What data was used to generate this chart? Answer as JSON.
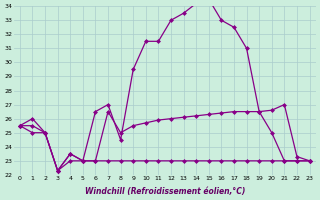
{
  "bg_color": "#cceedd",
  "grid_color": "#aacccc",
  "line_color": "#880088",
  "xlim": [
    -0.5,
    23.5
  ],
  "ylim": [
    22,
    34
  ],
  "xticks": [
    0,
    1,
    2,
    3,
    4,
    5,
    6,
    7,
    8,
    9,
    10,
    11,
    12,
    13,
    14,
    15,
    16,
    17,
    18,
    19,
    20,
    21,
    22,
    23
  ],
  "yticks": [
    22,
    23,
    24,
    25,
    26,
    27,
    28,
    29,
    30,
    31,
    32,
    33,
    34
  ],
  "line1_x": [
    0,
    1,
    2,
    3,
    4,
    5,
    6,
    7,
    8,
    9,
    10,
    11,
    12,
    13,
    14,
    15,
    16,
    17,
    18,
    19,
    20,
    21,
    22,
    23
  ],
  "line1_y": [
    25.5,
    26.0,
    25.0,
    22.3,
    23.5,
    23.0,
    23.0,
    26.5,
    25.0,
    25.5,
    25.7,
    25.9,
    26.0,
    26.1,
    26.2,
    26.3,
    26.4,
    26.5,
    26.5,
    26.5,
    26.6,
    27.0,
    23.3,
    23.0
  ],
  "line2_x": [
    0,
    1,
    2,
    3,
    4,
    5,
    6,
    7,
    8,
    9,
    10,
    11,
    12,
    13,
    14,
    15,
    16,
    17,
    18,
    19,
    20,
    21,
    22,
    23
  ],
  "line2_y": [
    25.5,
    25.0,
    25.0,
    22.3,
    23.5,
    23.0,
    26.5,
    27.0,
    24.5,
    29.5,
    31.5,
    31.5,
    33.0,
    33.5,
    34.2,
    34.5,
    33.0,
    32.5,
    31.0,
    26.5,
    25.0,
    23.0,
    23.0,
    23.0
  ],
  "line3_x": [
    0,
    1,
    2,
    3,
    4,
    5,
    6,
    7,
    8,
    9,
    10,
    11,
    12,
    13,
    14,
    15,
    16,
    17,
    18,
    19,
    20,
    21,
    22,
    23
  ],
  "line3_y": [
    25.5,
    25.5,
    25.0,
    22.3,
    23.0,
    23.0,
    23.0,
    23.0,
    23.0,
    23.0,
    23.0,
    23.0,
    23.0,
    23.0,
    23.0,
    23.0,
    23.0,
    23.0,
    23.0,
    23.0,
    23.0,
    23.0,
    23.0,
    23.0
  ],
  "xlabel": "Windchill (Refroidissement éolien,°C)",
  "xlabel_color": "#660066",
  "xlabel_fontsize": 5.5
}
